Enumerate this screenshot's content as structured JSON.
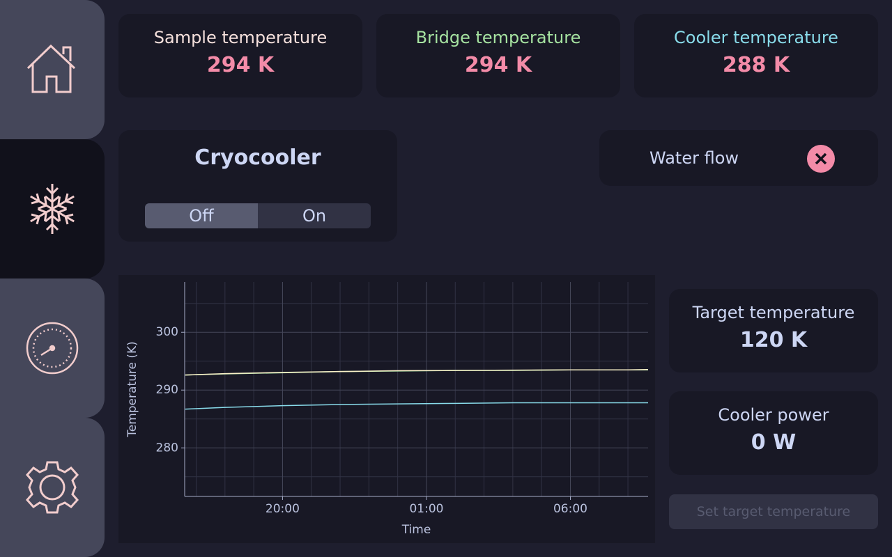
{
  "readouts": [
    {
      "label": "Sample temperature",
      "value": "294 K"
    },
    {
      "label": "Bridge temperature",
      "value": "294 K"
    },
    {
      "label": "Cooler temperature",
      "value": "288 K"
    }
  ],
  "cryocooler": {
    "title": "Cryocooler",
    "options": [
      "Off",
      "On"
    ]
  },
  "water_flow": {
    "label": "Water flow"
  },
  "target": {
    "label": "Target temperature",
    "value": "120 K"
  },
  "power": {
    "label": "Cooler power",
    "value": "0 W"
  },
  "button": "Set target temperature",
  "chart": {
    "type": "line",
    "x_label": "Time",
    "y_label": "Temperature (K)",
    "x": [
      16.62,
      18,
      20,
      22,
      24,
      26,
      28,
      30,
      32,
      32.7
    ],
    "series": [
      {
        "color": "#a6e3a1",
        "values": [
          292.6,
          292.8,
          293.0,
          293.2,
          293.3,
          293.4,
          293.4,
          293.5,
          293.5,
          293.5
        ]
      },
      {
        "color": "#f9f1c8",
        "values": [
          292.6,
          292.85,
          293.05,
          293.2,
          293.35,
          293.4,
          293.45,
          293.5,
          293.5,
          293.55
        ]
      },
      {
        "color": "#89dceb",
        "values": [
          286.7,
          287.0,
          287.3,
          287.5,
          287.6,
          287.7,
          287.8,
          287.8,
          287.8,
          287.8
        ]
      }
    ],
    "xlim": [
      16.6,
      32.7
    ],
    "xticks": [
      {
        "value": 20,
        "label": "20:00"
      },
      {
        "value": 25,
        "label": "01:00"
      },
      {
        "value": 30,
        "label": "06:00"
      }
    ],
    "x_minor_ticks": [
      17,
      18,
      19,
      21,
      22,
      23,
      24,
      26,
      27,
      28,
      29,
      31,
      32
    ],
    "ylim": [
      271.6,
      308.7
    ],
    "yticks": [
      280,
      290,
      300
    ],
    "y_minor_ticks": [
      275,
      285,
      295,
      305
    ],
    "grid": true
  }
}
